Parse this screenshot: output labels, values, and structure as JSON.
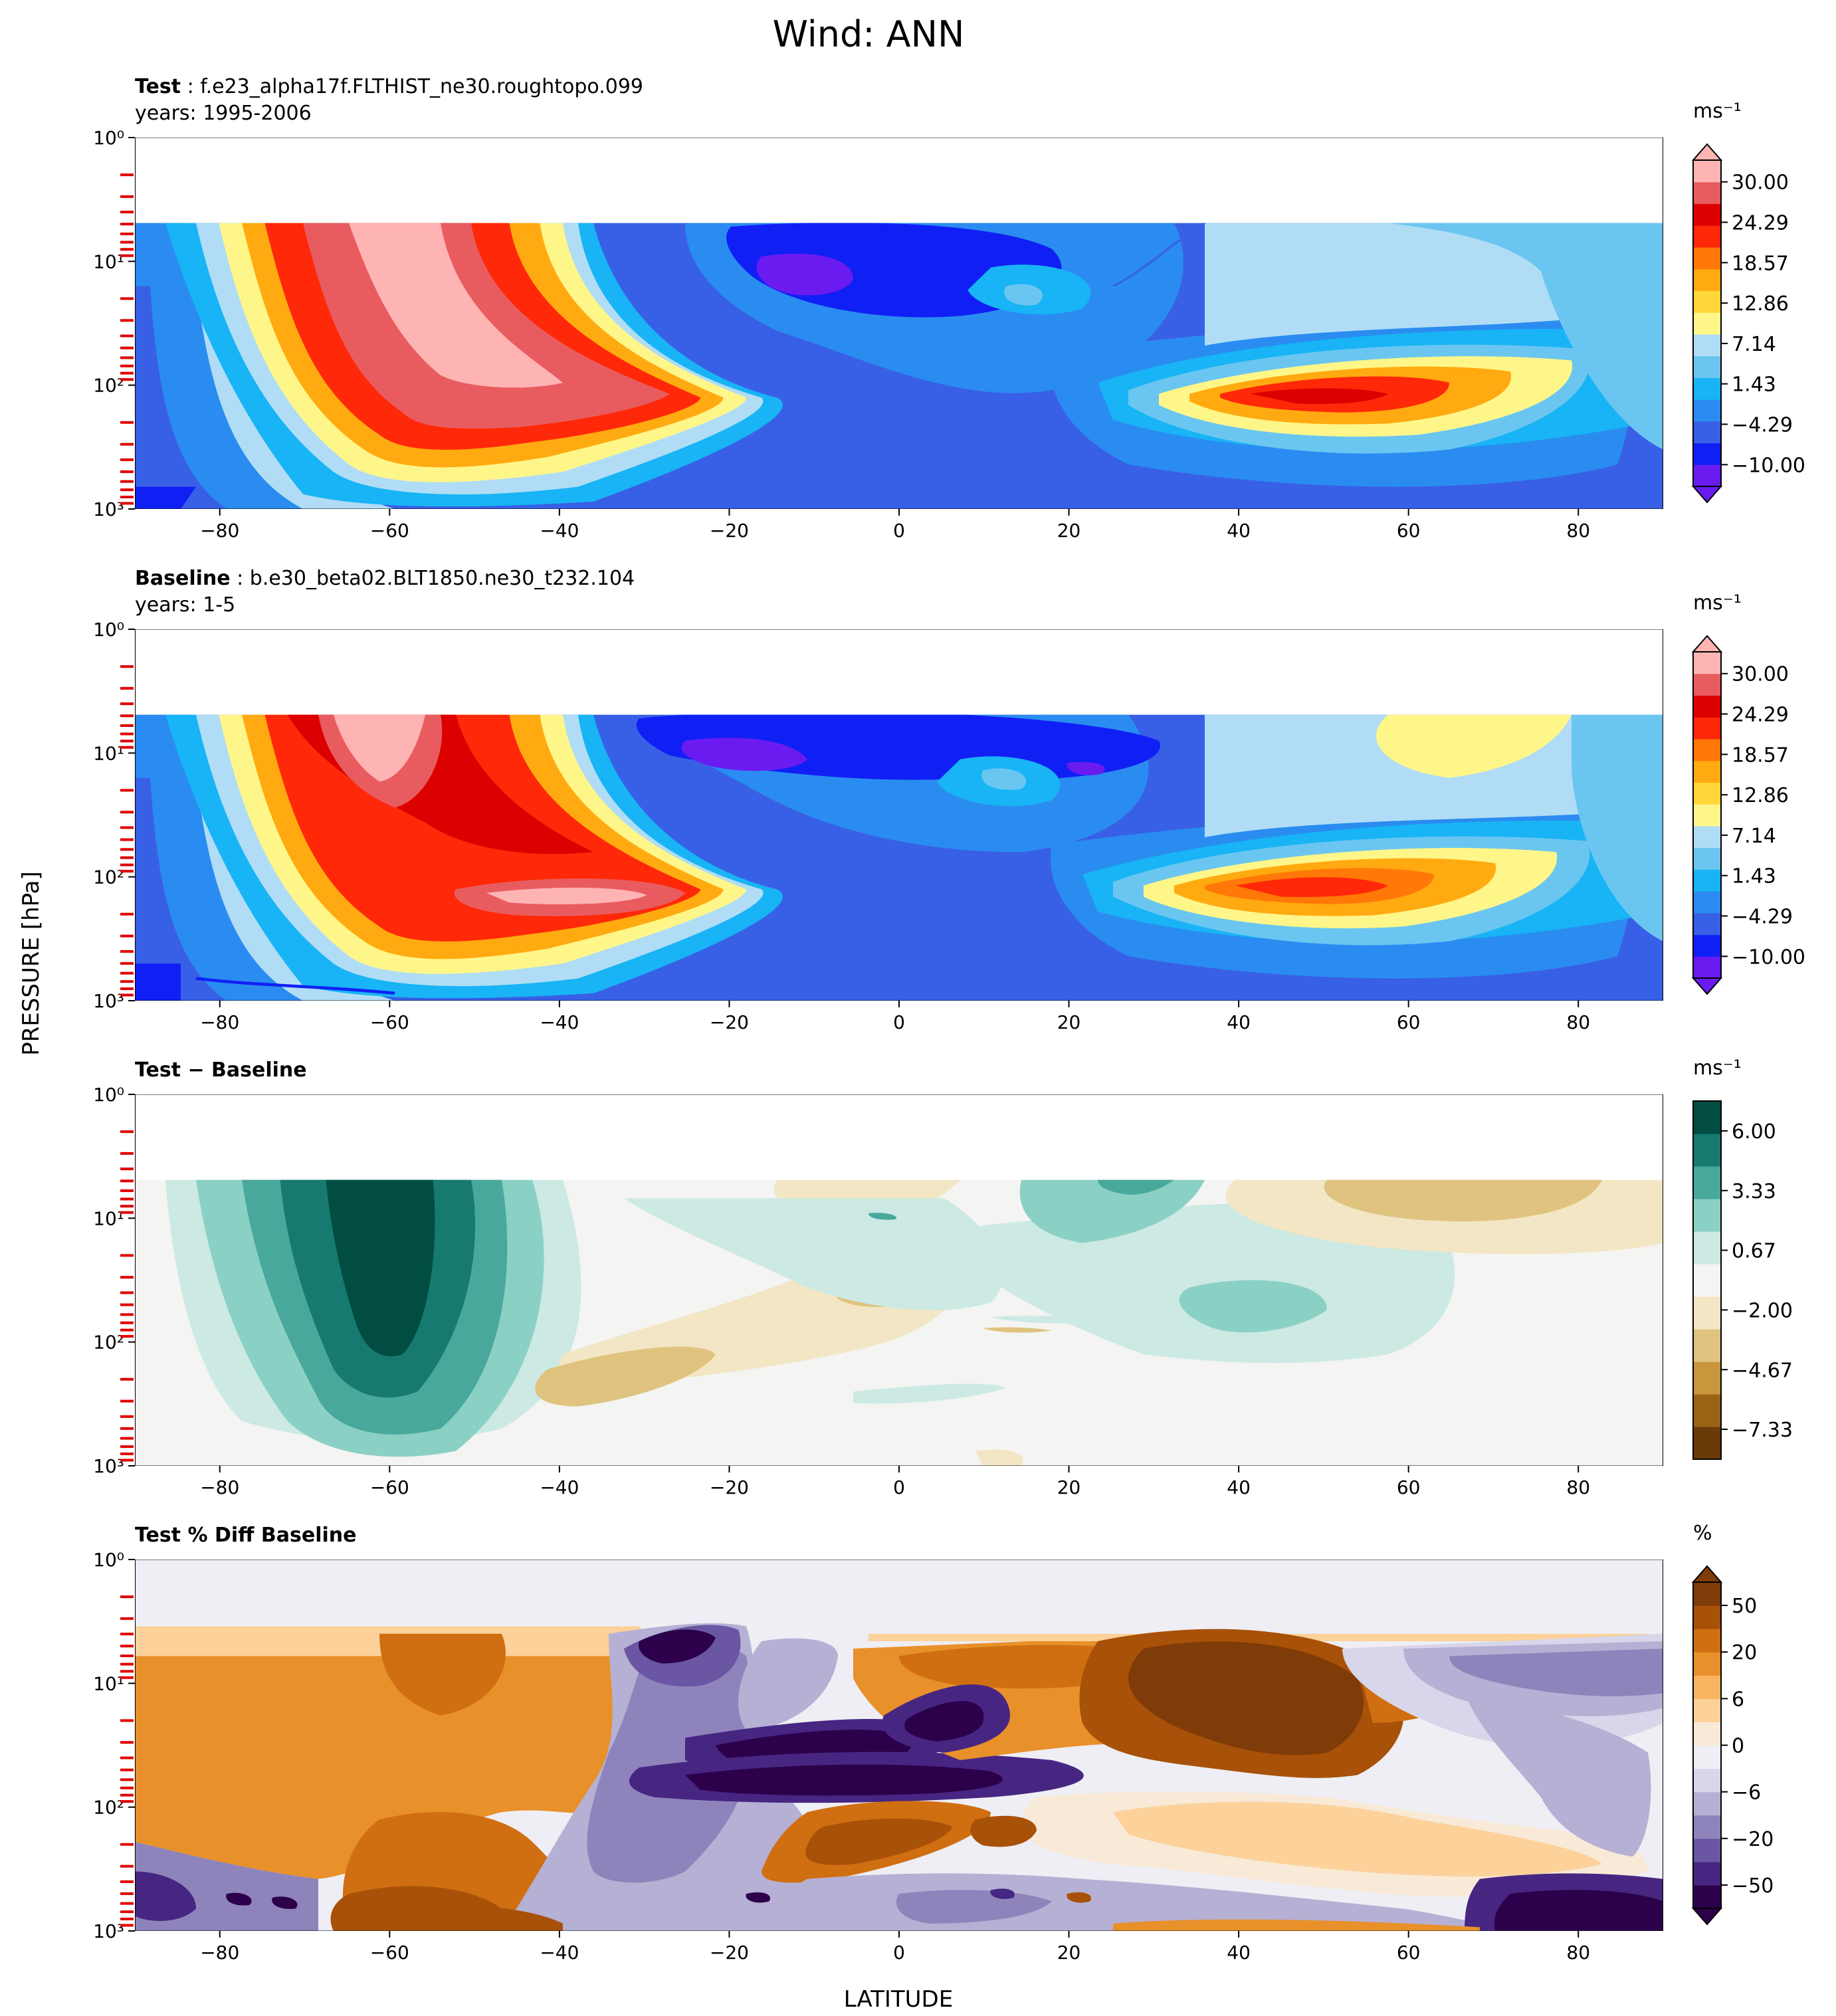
{
  "figure": {
    "title": "Wind: ANN",
    "xlabel": "LATITUDE",
    "ylabel": "PRESSURE [hPa]"
  },
  "chart_data": [
    {
      "type": "heatmap",
      "name": "test",
      "title_bold": "Test",
      "title_rest": " : f.e23_alpha17f.FLTHIST_ne30.roughtopo.099",
      "subtitle": "years: 1995-2006",
      "x_ticks": [
        -80,
        -60,
        -40,
        -20,
        0,
        20,
        40,
        60,
        80
      ],
      "xlim": [
        -90,
        90
      ],
      "ylim": [
        1000,
        1
      ],
      "y_scale": "log",
      "y_tick_labels": [
        "10⁰",
        "10¹",
        "10²",
        "10³"
      ],
      "colorbar": {
        "unit": "ms⁻¹",
        "levels": [
          "30.00",
          "24.29",
          "18.57",
          "12.86",
          "7.14",
          "1.43",
          "−4.29",
          "−10.00"
        ],
        "extend": "both",
        "colors": [
          "#6a1bf0",
          "#1020f5",
          "#3860e6",
          "#2a8cf0",
          "#18b4f5",
          "#6ac6f0",
          "#b0ddf5",
          "#fff68a",
          "#ffd738",
          "#ffaa10",
          "#ff7808",
          "#ff2808",
          "#dc0000",
          "#e85c60",
          "#ffb4b4"
        ]
      }
    },
    {
      "type": "heatmap",
      "name": "baseline",
      "title_bold": "Baseline",
      "title_rest": " : b.e30_beta02.BLT1850.ne30_t232.104",
      "subtitle": "years: 1-5",
      "x_ticks": [
        -80,
        -60,
        -40,
        -20,
        0,
        20,
        40,
        60,
        80
      ],
      "xlim": [
        -90,
        90
      ],
      "ylim": [
        1000,
        1
      ],
      "y_scale": "log",
      "y_tick_labels": [
        "10⁰",
        "10¹",
        "10²",
        "10³"
      ],
      "colorbar": {
        "unit": "ms⁻¹",
        "levels": [
          "30.00",
          "24.29",
          "18.57",
          "12.86",
          "7.14",
          "1.43",
          "−4.29",
          "−10.00"
        ],
        "extend": "both",
        "colors": [
          "#6a1bf0",
          "#1020f5",
          "#3860e6",
          "#2a8cf0",
          "#18b4f5",
          "#6ac6f0",
          "#b0ddf5",
          "#fff68a",
          "#ffd738",
          "#ffaa10",
          "#ff7808",
          "#ff2808",
          "#dc0000",
          "#e85c60",
          "#ffb4b4"
        ]
      }
    },
    {
      "type": "heatmap",
      "name": "diff",
      "title_bold": "Test − Baseline",
      "title_rest": "",
      "subtitle": "",
      "x_ticks": [
        -80,
        -60,
        -40,
        -20,
        0,
        20,
        40,
        60,
        80
      ],
      "xlim": [
        -90,
        90
      ],
      "ylim": [
        1000,
        1
      ],
      "y_scale": "log",
      "y_tick_labels": [
        "10⁰",
        "10¹",
        "10²",
        "10³"
      ],
      "colorbar": {
        "unit": "ms⁻¹",
        "levels": [
          "6.00",
          "3.33",
          "0.67",
          "−2.00",
          "−4.67",
          "−7.33"
        ],
        "extend": "neither",
        "colors": [
          "#6a3a08",
          "#9a6414",
          "#c8963c",
          "#dfc37f",
          "#f3e6c4",
          "#f4f4f2",
          "#cce9e3",
          "#8bd0c4",
          "#48a89b",
          "#177a70",
          "#014d42"
        ]
      }
    },
    {
      "type": "heatmap",
      "name": "pctdiff",
      "title_bold": "Test % Diff Baseline",
      "title_rest": "",
      "subtitle": "",
      "x_ticks": [
        -80,
        -60,
        -40,
        -20,
        0,
        20,
        40,
        60,
        80
      ],
      "xlim": [
        -90,
        90
      ],
      "ylim": [
        1000,
        1
      ],
      "y_scale": "log",
      "y_tick_labels": [
        "10⁰",
        "10¹",
        "10²",
        "10³"
      ],
      "colorbar": {
        "unit": "%",
        "levels": [
          "50",
          "20",
          "6",
          "0",
          "−6",
          "−20",
          "−50"
        ],
        "extend": "both",
        "colors": [
          "#2d004b",
          "#472682",
          "#6a56a3",
          "#8e84bb",
          "#b5b0d4",
          "#d7d6ea",
          "#eeeef4",
          "#f8ead6",
          "#fcd19a",
          "#f9b461",
          "#e8902a",
          "#d06e12",
          "#a85108",
          "#7f3b08"
        ]
      }
    }
  ]
}
